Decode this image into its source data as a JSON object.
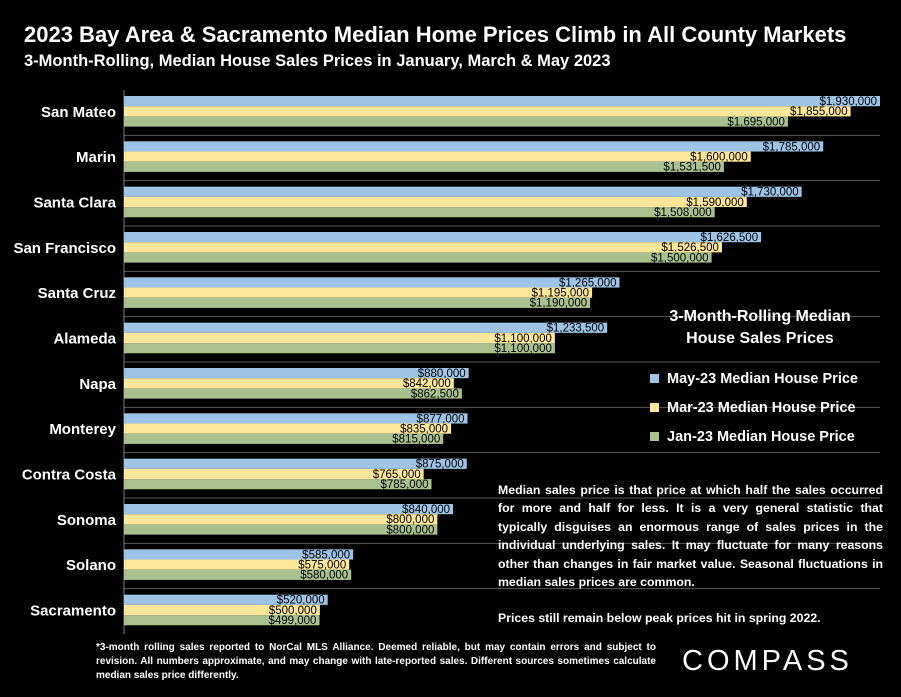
{
  "header": {
    "title": "2023 Bay Area & Sacramento Median Home Prices Climb in All County Markets",
    "subtitle": "3-Month-Rolling, Median House Sales Prices in January, March & May 2023"
  },
  "legend": {
    "title_line1": "3-Month-Rolling Median",
    "title_line2": "House Sales Prices",
    "items": [
      {
        "label": "May-23 Median House Price",
        "color": "#9dc3e6"
      },
      {
        "label": "Mar-23 Median House Price",
        "color": "#ffe699"
      },
      {
        "label": "Jan-23 Median House Price",
        "color": "#a9c08f"
      }
    ]
  },
  "note": {
    "paragraph1": "Median sales price is that price at which half the sales occurred for more and half for less. It is a very general statistic that typically disguises an enormous range of sales prices in the individual underlying sales. It may fluctuate for many reasons other than changes in fair market value. Seasonal fluctuations in median sales prices are common.",
    "paragraph2": "Prices still remain below peak prices hit in spring 2022."
  },
  "footnote": "*3-month rolling sales reported to NorCal MLS Alliance. Deemed reliable, but may contain errors and subject to revision. All numbers approximate, and may change with late-reported sales. Different sources sometimes calculate median sales price differently.",
  "logo": "COMPASS",
  "chart_data": {
    "type": "bar",
    "orientation": "horizontal",
    "categories": [
      "San Mateo",
      "Marin",
      "Santa Clara",
      "San Francisco",
      "Santa Cruz",
      "Alameda",
      "Napa",
      "Monterey",
      "Contra Costa",
      "Sonoma",
      "Solano",
      "Sacramento"
    ],
    "series": [
      {
        "name": "May-23 Median House Price",
        "color": "#9dc3e6",
        "values": [
          1930000,
          1785000,
          1730000,
          1626500,
          1265000,
          1233500,
          880000,
          877000,
          875000,
          840000,
          585000,
          520000
        ],
        "labels": [
          "$1,930,000",
          "$1,785,000",
          "$1,730,000",
          "$1,626,500",
          "$1,265,000",
          "$1,233,500",
          "$880,000",
          "$877,000",
          "$875,000",
          "$840,000",
          "$585,000",
          "$520,000"
        ]
      },
      {
        "name": "Mar-23 Median House Price",
        "color": "#ffe699",
        "values": [
          1855000,
          1600000,
          1590000,
          1526500,
          1195000,
          1100000,
          842000,
          835000,
          765000,
          800000,
          575000,
          500000
        ],
        "labels": [
          "$1,855,000",
          "$1,600,000",
          "$1,590,000",
          "$1,526,500",
          "$1,195,000",
          "$1,100,000",
          "$842,000",
          "$835,000",
          "$765,000",
          "$800,000",
          "$575,000",
          "$500,000"
        ]
      },
      {
        "name": "Jan-23 Median House Price",
        "color": "#a9c08f",
        "values": [
          1695000,
          1531500,
          1508000,
          1500000,
          1190000,
          1100000,
          862500,
          815000,
          785000,
          800000,
          580000,
          499000
        ],
        "labels": [
          "$1,695,000",
          "$1,531,500",
          "$1,508,000",
          "$1,500,000",
          "$1,190,000",
          "$1,100,000",
          "$862,500",
          "$815,000",
          "$785,000",
          "$800,000",
          "$580,000",
          "$499,000"
        ]
      }
    ],
    "xlim": [
      0,
      1930000
    ],
    "gridlines": true
  }
}
